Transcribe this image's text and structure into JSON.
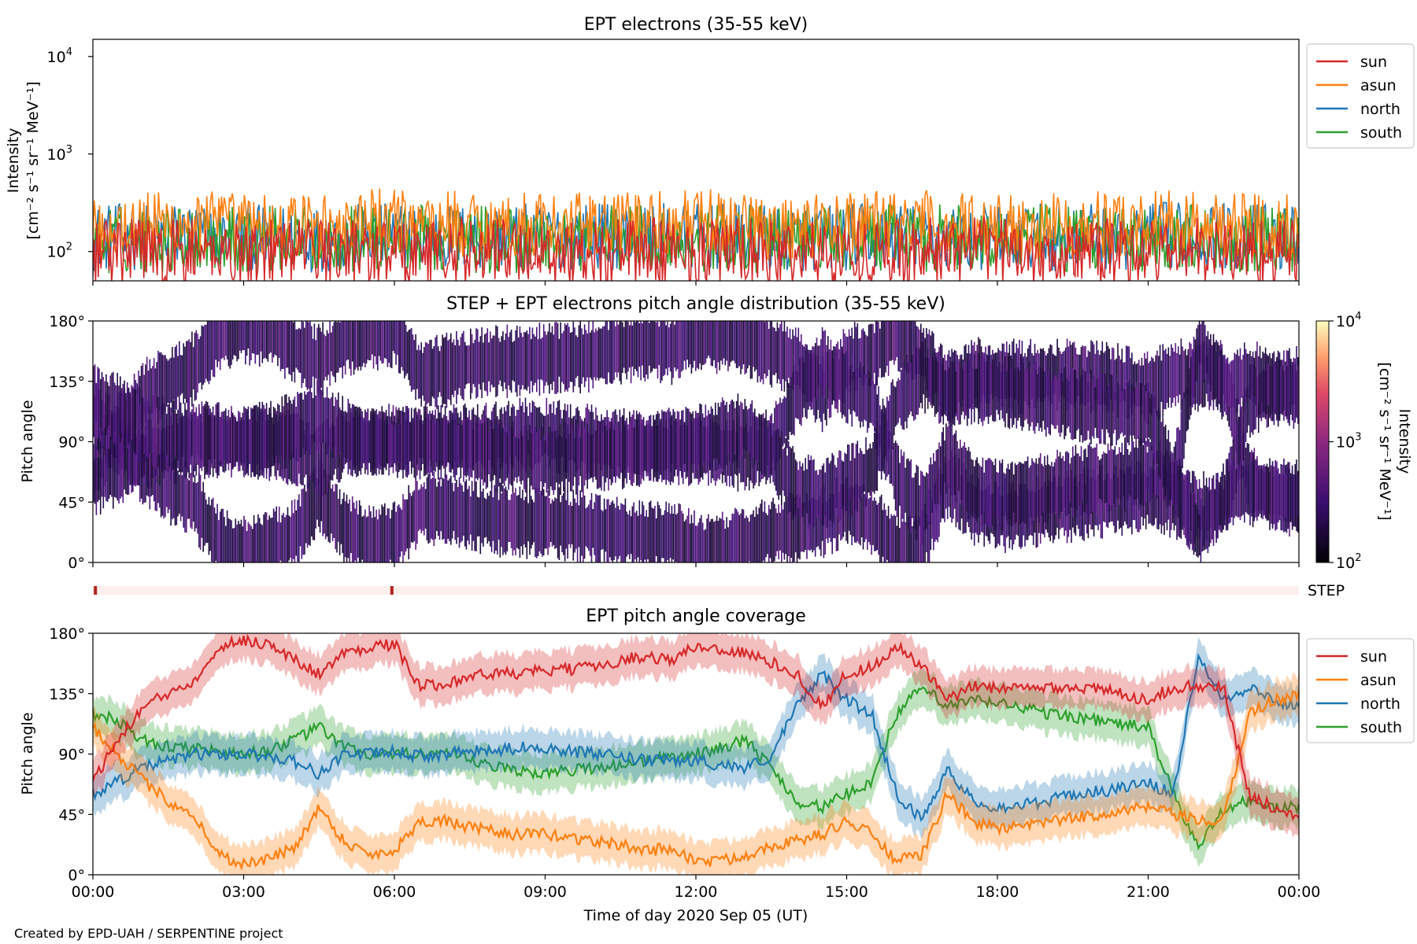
{
  "credit": "Created by EPD-UAH / SERPENTINE project",
  "xaxis": {
    "label": "Time of day 2020 Sep 05 (UT)",
    "ticks": [
      "00:00",
      "03:00",
      "06:00",
      "09:00",
      "12:00",
      "15:00",
      "18:00",
      "21:00",
      "00:00"
    ],
    "range_hours": [
      0,
      24
    ]
  },
  "colors": {
    "sun": "#d62728",
    "asun": "#ff7f0e",
    "north": "#1f77b4",
    "south": "#2ca02c",
    "step": "#b22222"
  },
  "panel1": {
    "title": "EPT electrons (35-55 keV)",
    "ylabel1": "Intensity",
    "ylabel2": "[cm⁻² s⁻¹ sr⁻¹ MeV⁻¹]",
    "yticks": [
      {
        "base": "10",
        "exp": "4",
        "value": 10000
      },
      {
        "base": "10",
        "exp": "3",
        "value": 1000
      },
      {
        "base": "10",
        "exp": "2",
        "value": 100
      }
    ],
    "legend": [
      "sun",
      "asun",
      "north",
      "south"
    ]
  },
  "panel2": {
    "title": "STEP + EPT electrons pitch angle distribution (35-55 keV)",
    "ylabel": "Pitch angle",
    "yticks": [
      "180°",
      "135°",
      "90°",
      "45°",
      "0°"
    ],
    "colorbar_label1": "Intensity",
    "colorbar_label2": "[cm⁻² s⁻¹ sr⁻¹ MeV⁻¹]",
    "colorbar_ticks": [
      {
        "base": "10",
        "exp": "4",
        "value": 10000
      },
      {
        "base": "10",
        "exp": "3",
        "value": 1000
      },
      {
        "base": "10",
        "exp": "2",
        "value": 100
      }
    ]
  },
  "step_bar": {
    "label": "STEP",
    "markers_hours": [
      0.05,
      5.95
    ]
  },
  "panel3": {
    "title": "EPT pitch angle coverage",
    "ylabel": "Pitch angle",
    "yticks": [
      "180°",
      "135°",
      "90°",
      "45°",
      "0°"
    ],
    "legend": [
      "sun",
      "asun",
      "north",
      "south"
    ]
  },
  "chart_data": [
    {
      "type": "line",
      "title": "EPT electrons (35-55 keV)",
      "ylabel": "Intensity [cm⁻² s⁻¹ sr⁻¹ MeV⁻¹]",
      "xlabel": "Time of day 2020 Sep 05 (UT)",
      "yscale": "log",
      "ylim": [
        50,
        15000
      ],
      "x_hours": [
        0,
        2,
        4,
        6,
        8,
        10,
        12,
        14,
        16,
        18,
        20,
        22,
        24
      ],
      "series": [
        {
          "name": "sun",
          "values": [
            110,
            105,
            115,
            108,
            112,
            106,
            110,
            104,
            108,
            112,
            106,
            110,
            108
          ]
        },
        {
          "name": "asun",
          "values": [
            200,
            210,
            190,
            220,
            205,
            200,
            215,
            195,
            210,
            200,
            205,
            210,
            200
          ]
        },
        {
          "name": "north",
          "values": [
            150,
            160,
            145,
            155,
            150,
            158,
            152,
            148,
            155,
            150,
            153,
            160,
            150
          ]
        },
        {
          "name": "south",
          "values": [
            140,
            150,
            145,
            148,
            142,
            150,
            146,
            144,
            150,
            145,
            148,
            150,
            146
          ]
        }
      ],
      "legend_position": "outside right"
    },
    {
      "type": "heatmap",
      "title": "STEP + EPT electrons pitch angle distribution (35-55 keV)",
      "ylabel": "Pitch angle",
      "ylim": [
        0,
        180
      ],
      "colorbar": {
        "scale": "log",
        "range": [
          100,
          10000
        ],
        "label": "Intensity [cm⁻² s⁻¹ sr⁻¹ MeV⁻¹]"
      }
    },
    {
      "type": "line",
      "title": "EPT pitch angle coverage",
      "ylabel": "Pitch angle",
      "xlabel": "Time of day 2020 Sep 05 (UT)",
      "ylim": [
        0,
        180
      ],
      "x_hours": [
        0,
        0.5,
        1,
        1.5,
        2,
        2.5,
        3,
        3.5,
        4,
        4.5,
        5,
        5.5,
        6,
        6.5,
        7,
        7.5,
        8,
        8.5,
        9,
        9.5,
        10,
        10.5,
        11,
        11.5,
        12,
        12.5,
        13,
        13.5,
        14,
        14.5,
        15,
        15.5,
        16,
        16.5,
        17,
        17.5,
        18,
        18.5,
        19,
        19.5,
        20,
        20.5,
        21,
        21.5,
        22,
        22.5,
        23,
        23.5,
        24
      ],
      "series": [
        {
          "name": "sun",
          "values": [
            70,
            100,
            125,
            135,
            145,
            170,
            175,
            172,
            160,
            150,
            165,
            170,
            172,
            140,
            143,
            148,
            150,
            150,
            152,
            153,
            155,
            160,
            163,
            160,
            170,
            168,
            165,
            158,
            150,
            125,
            150,
            155,
            170,
            155,
            130,
            140,
            140,
            138,
            140,
            140,
            138,
            135,
            130,
            140,
            140,
            140,
            60,
            50,
            45
          ]
        },
        {
          "name": "asun",
          "values": [
            110,
            90,
            70,
            55,
            45,
            15,
            8,
            12,
            20,
            50,
            25,
            15,
            18,
            40,
            40,
            35,
            32,
            30,
            30,
            28,
            25,
            22,
            18,
            20,
            10,
            10,
            15,
            22,
            25,
            30,
            40,
            30,
            10,
            15,
            60,
            40,
            35,
            35,
            40,
            42,
            45,
            48,
            50,
            45,
            40,
            40,
            120,
            130,
            135
          ]
        },
        {
          "name": "north",
          "values": [
            60,
            70,
            80,
            85,
            90,
            90,
            90,
            88,
            85,
            75,
            90,
            90,
            92,
            88,
            90,
            92,
            92,
            95,
            95,
            92,
            90,
            88,
            85,
            85,
            85,
            82,
            80,
            88,
            125,
            150,
            130,
            120,
            60,
            40,
            80,
            55,
            50,
            52,
            55,
            60,
            62,
            65,
            68,
            60,
            165,
            130,
            140,
            130,
            125
          ]
        },
        {
          "name": "south",
          "values": [
            120,
            115,
            100,
            95,
            95,
            92,
            90,
            93,
            100,
            110,
            95,
            90,
            88,
            92,
            90,
            85,
            80,
            78,
            75,
            78,
            80,
            82,
            85,
            88,
            90,
            95,
            100,
            80,
            55,
            50,
            60,
            70,
            120,
            140,
            125,
            130,
            128,
            125,
            120,
            118,
            115,
            112,
            110,
            60,
            20,
            50,
            55,
            50,
            50
          ]
        }
      ],
      "legend_position": "outside right"
    }
  ]
}
